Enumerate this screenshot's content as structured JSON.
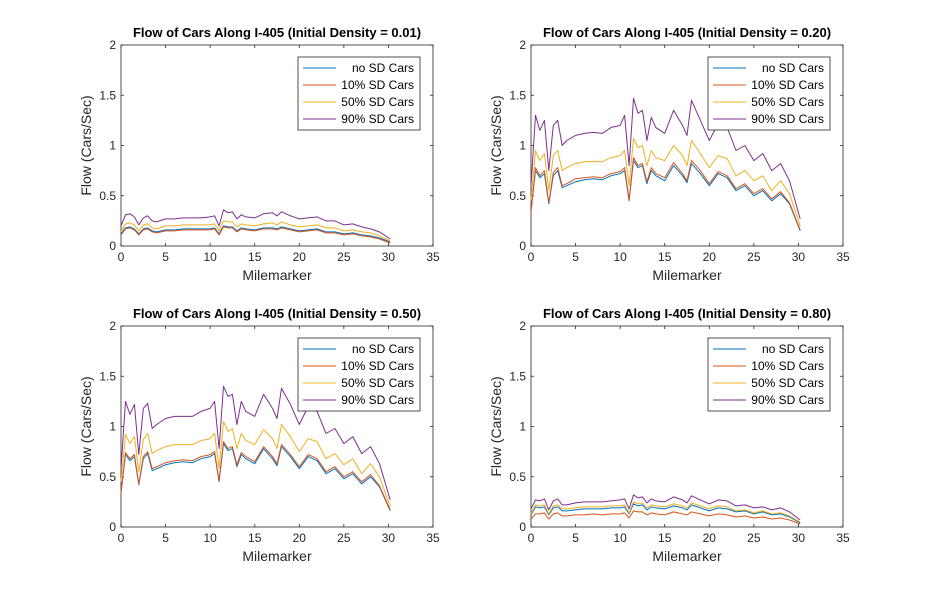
{
  "colors": {
    "no_sd": "#0072BD",
    "sd10": "#D95319",
    "sd50": "#EDB120",
    "sd90": "#7E2F8E",
    "axis": "#262626"
  },
  "chart_data": [
    {
      "type": "line",
      "title": "Flow of Cars Along I-405 (Initial Density = 0.01)",
      "xlabel": "Milemarker",
      "ylabel": "Flow (Cars/Sec)",
      "xlim": [
        0,
        35
      ],
      "ylim": [
        0,
        2
      ],
      "xticks": [
        "0",
        "5",
        "10",
        "15",
        "20",
        "25",
        "30",
        "35"
      ],
      "yticks": [
        "0",
        "0.5",
        "1",
        "1.5",
        "2"
      ],
      "legend_position": "top-right",
      "x": [
        0,
        0.5,
        1,
        1.5,
        2,
        2.5,
        3,
        3.5,
        4,
        5,
        6,
        7,
        8,
        9,
        10,
        10.5,
        11,
        11.5,
        12,
        12.5,
        13,
        13.5,
        14,
        15,
        16,
        17,
        17.5,
        18,
        19,
        20,
        21,
        22,
        23,
        24,
        25,
        26,
        27,
        28,
        29,
        30.2
      ],
      "series": [
        {
          "name": "no SD Cars",
          "color_key": "no_sd",
          "values": [
            0.12,
            0.18,
            0.19,
            0.17,
            0.12,
            0.17,
            0.18,
            0.15,
            0.14,
            0.16,
            0.16,
            0.17,
            0.17,
            0.17,
            0.17,
            0.18,
            0.12,
            0.2,
            0.19,
            0.19,
            0.15,
            0.18,
            0.17,
            0.16,
            0.18,
            0.18,
            0.17,
            0.19,
            0.17,
            0.15,
            0.16,
            0.17,
            0.14,
            0.14,
            0.12,
            0.13,
            0.11,
            0.1,
            0.08,
            0.04
          ]
        },
        {
          "name": "10% SD Cars",
          "color_key": "sd10",
          "values": [
            0.11,
            0.17,
            0.18,
            0.16,
            0.11,
            0.16,
            0.17,
            0.14,
            0.13,
            0.15,
            0.15,
            0.16,
            0.16,
            0.16,
            0.16,
            0.17,
            0.11,
            0.19,
            0.18,
            0.18,
            0.14,
            0.17,
            0.16,
            0.15,
            0.17,
            0.17,
            0.16,
            0.18,
            0.16,
            0.14,
            0.15,
            0.16,
            0.13,
            0.13,
            0.11,
            0.12,
            0.1,
            0.09,
            0.07,
            0.03
          ]
        },
        {
          "name": "50% SD Cars",
          "color_key": "sd50",
          "values": [
            0.14,
            0.22,
            0.23,
            0.21,
            0.15,
            0.21,
            0.22,
            0.18,
            0.17,
            0.2,
            0.2,
            0.21,
            0.21,
            0.21,
            0.21,
            0.22,
            0.15,
            0.25,
            0.24,
            0.24,
            0.19,
            0.22,
            0.21,
            0.2,
            0.22,
            0.23,
            0.21,
            0.24,
            0.21,
            0.19,
            0.2,
            0.21,
            0.18,
            0.18,
            0.15,
            0.16,
            0.14,
            0.13,
            0.1,
            0.05
          ]
        },
        {
          "name": "90% SD Cars",
          "color_key": "sd90",
          "values": [
            0.2,
            0.31,
            0.32,
            0.29,
            0.21,
            0.28,
            0.3,
            0.25,
            0.24,
            0.27,
            0.27,
            0.28,
            0.28,
            0.28,
            0.29,
            0.3,
            0.2,
            0.36,
            0.33,
            0.34,
            0.27,
            0.31,
            0.29,
            0.28,
            0.32,
            0.33,
            0.3,
            0.34,
            0.3,
            0.27,
            0.28,
            0.29,
            0.25,
            0.25,
            0.21,
            0.22,
            0.19,
            0.17,
            0.14,
            0.07
          ]
        }
      ]
    },
    {
      "type": "line",
      "title": "Flow of Cars Along I-405 (Initial Density = 0.20)",
      "xlabel": "Milemarker",
      "ylabel": "Flow (Cars/Sec)",
      "xlim": [
        0,
        35
      ],
      "ylim": [
        0,
        2
      ],
      "xticks": [
        "0",
        "5",
        "10",
        "15",
        "20",
        "25",
        "30",
        "35"
      ],
      "yticks": [
        "0",
        "0.5",
        "1",
        "1.5",
        "2"
      ],
      "legend_position": "top-right",
      "x": [
        0,
        0.5,
        1,
        1.5,
        2,
        2.5,
        3,
        3.5,
        4,
        5,
        6,
        7,
        8,
        9,
        10,
        10.5,
        11,
        11.5,
        12,
        12.5,
        13,
        13.5,
        14,
        15,
        16,
        17,
        17.5,
        18,
        19,
        20,
        21,
        22,
        23,
        24,
        25,
        26,
        27,
        28,
        29,
        30.2
      ],
      "series": [
        {
          "name": "no SD Cars",
          "color_key": "no_sd",
          "values": [
            0.35,
            0.75,
            0.68,
            0.72,
            0.42,
            0.7,
            0.75,
            0.58,
            0.6,
            0.64,
            0.66,
            0.67,
            0.66,
            0.7,
            0.72,
            0.75,
            0.45,
            0.85,
            0.78,
            0.8,
            0.62,
            0.75,
            0.7,
            0.65,
            0.8,
            0.7,
            0.63,
            0.82,
            0.72,
            0.6,
            0.72,
            0.68,
            0.55,
            0.6,
            0.5,
            0.55,
            0.45,
            0.52,
            0.42,
            0.15
          ]
        },
        {
          "name": "10% SD Cars",
          "color_key": "sd10",
          "values": [
            0.33,
            0.78,
            0.7,
            0.75,
            0.43,
            0.73,
            0.78,
            0.6,
            0.62,
            0.67,
            0.68,
            0.69,
            0.68,
            0.72,
            0.74,
            0.78,
            0.46,
            0.88,
            0.8,
            0.82,
            0.64,
            0.78,
            0.72,
            0.68,
            0.83,
            0.72,
            0.65,
            0.85,
            0.75,
            0.62,
            0.74,
            0.7,
            0.57,
            0.62,
            0.52,
            0.57,
            0.47,
            0.54,
            0.43,
            0.16
          ]
        },
        {
          "name": "50% SD Cars",
          "color_key": "sd50",
          "values": [
            0.45,
            0.95,
            0.85,
            0.92,
            0.55,
            0.9,
            0.95,
            0.75,
            0.78,
            0.82,
            0.84,
            0.84,
            0.84,
            0.88,
            0.9,
            0.95,
            0.6,
            1.07,
            0.98,
            1.0,
            0.8,
            0.95,
            0.88,
            0.85,
            1.0,
            0.9,
            0.8,
            1.05,
            0.92,
            0.78,
            0.9,
            0.87,
            0.7,
            0.75,
            0.65,
            0.7,
            0.55,
            0.65,
            0.52,
            0.2
          ]
        },
        {
          "name": "90% SD Cars",
          "color_key": "sd90",
          "values": [
            0.6,
            1.3,
            1.15,
            1.25,
            0.75,
            1.2,
            1.25,
            1.0,
            1.05,
            1.1,
            1.12,
            1.13,
            1.12,
            1.18,
            1.2,
            1.3,
            0.8,
            1.47,
            1.32,
            1.35,
            1.05,
            1.28,
            1.18,
            1.12,
            1.35,
            1.2,
            1.1,
            1.45,
            1.25,
            1.05,
            1.22,
            1.18,
            0.95,
            1.0,
            0.85,
            0.92,
            0.75,
            0.82,
            0.65,
            0.27
          ]
        }
      ]
    },
    {
      "type": "line",
      "title": "Flow of Cars Along I-405 (Initial Density = 0.50)",
      "xlabel": "Milemarker",
      "ylabel": "Flow (Cars/Sec)",
      "xlim": [
        0,
        35
      ],
      "ylim": [
        0,
        2
      ],
      "xticks": [
        "0",
        "5",
        "10",
        "15",
        "20",
        "25",
        "30",
        "35"
      ],
      "yticks": [
        "0",
        "0.5",
        "1",
        "1.5",
        "2"
      ],
      "legend_position": "top-right",
      "x": [
        0,
        0.5,
        1,
        1.5,
        2,
        2.5,
        3,
        3.5,
        4,
        5,
        6,
        7,
        8,
        9,
        10,
        10.5,
        11,
        11.5,
        12,
        12.5,
        13,
        13.5,
        14,
        15,
        16,
        17,
        17.5,
        18,
        19,
        20,
        21,
        22,
        23,
        24,
        25,
        26,
        27,
        28,
        29,
        30.2
      ],
      "series": [
        {
          "name": "no SD Cars",
          "color_key": "no_sd",
          "values": [
            0.35,
            0.72,
            0.66,
            0.7,
            0.42,
            0.68,
            0.73,
            0.56,
            0.58,
            0.62,
            0.64,
            0.65,
            0.64,
            0.68,
            0.7,
            0.73,
            0.45,
            0.83,
            0.76,
            0.78,
            0.6,
            0.72,
            0.68,
            0.63,
            0.78,
            0.68,
            0.61,
            0.8,
            0.7,
            0.58,
            0.7,
            0.66,
            0.53,
            0.58,
            0.48,
            0.53,
            0.43,
            0.5,
            0.4,
            0.16
          ]
        },
        {
          "name": "10% SD Cars",
          "color_key": "sd10",
          "values": [
            0.33,
            0.74,
            0.68,
            0.72,
            0.43,
            0.7,
            0.75,
            0.58,
            0.6,
            0.64,
            0.66,
            0.67,
            0.66,
            0.7,
            0.72,
            0.75,
            0.46,
            0.85,
            0.78,
            0.8,
            0.62,
            0.74,
            0.7,
            0.65,
            0.8,
            0.7,
            0.63,
            0.82,
            0.72,
            0.6,
            0.72,
            0.68,
            0.55,
            0.6,
            0.5,
            0.55,
            0.45,
            0.52,
            0.41,
            0.17
          ]
        },
        {
          "name": "50% SD Cars",
          "color_key": "sd50",
          "values": [
            0.45,
            0.92,
            0.83,
            0.9,
            0.55,
            0.87,
            0.93,
            0.73,
            0.76,
            0.8,
            0.82,
            0.82,
            0.82,
            0.86,
            0.88,
            0.93,
            0.58,
            1.05,
            0.95,
            0.98,
            0.78,
            0.93,
            0.86,
            0.82,
            0.97,
            0.88,
            0.78,
            1.02,
            0.9,
            0.75,
            0.88,
            0.85,
            0.68,
            0.73,
            0.62,
            0.68,
            0.53,
            0.63,
            0.5,
            0.2
          ]
        },
        {
          "name": "90% SD Cars",
          "color_key": "sd90",
          "values": [
            0.58,
            1.25,
            1.12,
            1.22,
            0.72,
            1.18,
            1.23,
            0.98,
            1.02,
            1.08,
            1.1,
            1.1,
            1.1,
            1.15,
            1.18,
            1.25,
            0.78,
            1.4,
            1.3,
            1.32,
            1.02,
            1.25,
            1.15,
            1.1,
            1.32,
            1.18,
            1.08,
            1.38,
            1.22,
            1.02,
            1.2,
            1.15,
            0.93,
            0.98,
            0.83,
            0.9,
            0.73,
            0.8,
            0.63,
            0.27
          ]
        }
      ]
    },
    {
      "type": "line",
      "title": "Flow of Cars Along I-405 (Initial Density = 0.80)",
      "xlabel": "Milemarker",
      "ylabel": "Flow (Cars/Sec)",
      "xlim": [
        0,
        35
      ],
      "ylim": [
        0,
        2
      ],
      "xticks": [
        "0",
        "5",
        "10",
        "15",
        "20",
        "25",
        "30",
        "35"
      ],
      "yticks": [
        "0",
        "0.5",
        "1",
        "1.5",
        "2"
      ],
      "legend_position": "top-right",
      "x": [
        0,
        0.5,
        1,
        1.5,
        2,
        2.5,
        3,
        3.5,
        4,
        5,
        6,
        7,
        8,
        9,
        10,
        10.5,
        11,
        11.5,
        12,
        12.5,
        13,
        13.5,
        14,
        15,
        16,
        17,
        17.5,
        18,
        19,
        20,
        21,
        22,
        23,
        24,
        25,
        26,
        27,
        28,
        29,
        30.2
      ],
      "series": [
        {
          "name": "no SD Cars",
          "color_key": "no_sd",
          "values": [
            0.12,
            0.2,
            0.19,
            0.2,
            0.12,
            0.19,
            0.2,
            0.16,
            0.16,
            0.17,
            0.18,
            0.18,
            0.18,
            0.19,
            0.19,
            0.2,
            0.13,
            0.23,
            0.21,
            0.22,
            0.17,
            0.2,
            0.19,
            0.18,
            0.21,
            0.19,
            0.17,
            0.22,
            0.19,
            0.16,
            0.19,
            0.18,
            0.15,
            0.16,
            0.13,
            0.15,
            0.12,
            0.13,
            0.1,
            0.04
          ]
        },
        {
          "name": "10% SD Cars",
          "color_key": "sd10",
          "values": [
            0.08,
            0.13,
            0.13,
            0.14,
            0.08,
            0.13,
            0.14,
            0.11,
            0.11,
            0.12,
            0.12,
            0.13,
            0.12,
            0.13,
            0.13,
            0.14,
            0.09,
            0.16,
            0.15,
            0.15,
            0.12,
            0.14,
            0.13,
            0.12,
            0.15,
            0.13,
            0.12,
            0.15,
            0.13,
            0.11,
            0.13,
            0.12,
            0.1,
            0.11,
            0.09,
            0.1,
            0.08,
            0.09,
            0.07,
            0.03
          ]
        },
        {
          "name": "50% SD Cars",
          "color_key": "sd50",
          "values": [
            0.13,
            0.22,
            0.21,
            0.22,
            0.13,
            0.21,
            0.22,
            0.18,
            0.18,
            0.19,
            0.2,
            0.2,
            0.2,
            0.21,
            0.21,
            0.22,
            0.14,
            0.25,
            0.23,
            0.24,
            0.19,
            0.22,
            0.21,
            0.2,
            0.23,
            0.21,
            0.19,
            0.24,
            0.21,
            0.18,
            0.21,
            0.2,
            0.16,
            0.17,
            0.14,
            0.16,
            0.13,
            0.14,
            0.11,
            0.05
          ]
        },
        {
          "name": "90% SD Cars",
          "color_key": "sd90",
          "values": [
            0.18,
            0.27,
            0.26,
            0.28,
            0.17,
            0.26,
            0.28,
            0.22,
            0.22,
            0.24,
            0.25,
            0.25,
            0.25,
            0.26,
            0.27,
            0.28,
            0.18,
            0.32,
            0.29,
            0.3,
            0.24,
            0.28,
            0.26,
            0.25,
            0.3,
            0.27,
            0.24,
            0.31,
            0.27,
            0.23,
            0.27,
            0.26,
            0.21,
            0.22,
            0.19,
            0.2,
            0.17,
            0.19,
            0.15,
            0.07
          ]
        }
      ]
    }
  ]
}
